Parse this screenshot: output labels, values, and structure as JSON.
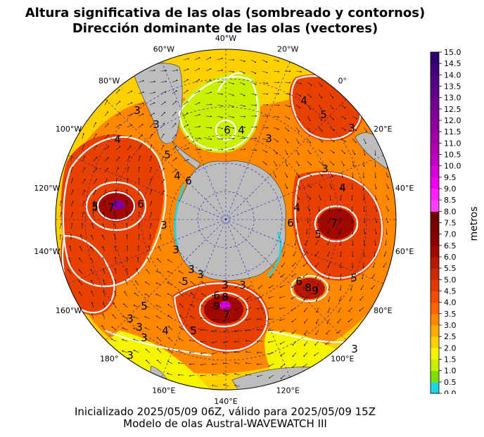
{
  "title_line1": "Altura significativa de las olas (sombreado y contornos)",
  "title_line2": "Dirección dominante de las olas (vectores)",
  "footer_line1": "Inicializado 2025/05/09 06Z, válido para 2025/05/09 15Z",
  "footer_line2": "Modelo de olas Austral-WAVEWATCH III",
  "colorbar": {
    "label": "metros",
    "ticks": [
      "0.0",
      "0.5",
      "1.0",
      "1.5",
      "2.0",
      "2.5",
      "3.0",
      "3.5",
      "4.0",
      "4.5",
      "5.0",
      "5.5",
      "6.0",
      "6.5",
      "7.0",
      "7.5",
      "8.0",
      "8.5",
      "9.0",
      "9.5",
      "10.0",
      "10.5",
      "11.0",
      "11.5",
      "12.0",
      "12.5",
      "13.0",
      "13.5",
      "14.0",
      "14.5",
      "15.0"
    ],
    "colors": [
      "#22d3e6",
      "#7fe000",
      "#c8f000",
      "#f5f500",
      "#ffd000",
      "#ffaa00",
      "#ff8800",
      "#ff6600",
      "#f04c00",
      "#e03a00",
      "#cc2a00",
      "#b81800",
      "#a00800",
      "#8a0000",
      "#7a0000",
      "#700000",
      "#ff40ff",
      "#ff20ff",
      "#f000f0",
      "#d800d8",
      "#c000c0",
      "#b000b0",
      "#a000a8",
      "#9000a0",
      "#800098",
      "#700090",
      "#600088",
      "#500080",
      "#400078",
      "#30006e"
    ]
  },
  "longitude_labels": [
    "40°W",
    "20°W",
    "0°",
    "20°E",
    "40°E",
    "60°E",
    "80°E",
    "100°E",
    "120°E",
    "140°E",
    "160°E",
    "180°",
    "160°W",
    "140°W",
    "120°W",
    "100°W",
    "80°W",
    "60°W"
  ],
  "contour_labels": [
    "3",
    "4",
    "5",
    "6",
    "7",
    "8",
    "9"
  ],
  "map_colors": {
    "land": "#bdbdbd",
    "ocean_low": "#c8f000",
    "ocean_mid": "#ffaa00",
    "ocean_high": "#e03a00",
    "contour": "#ffffff",
    "graticule": "#1a1aa0"
  }
}
